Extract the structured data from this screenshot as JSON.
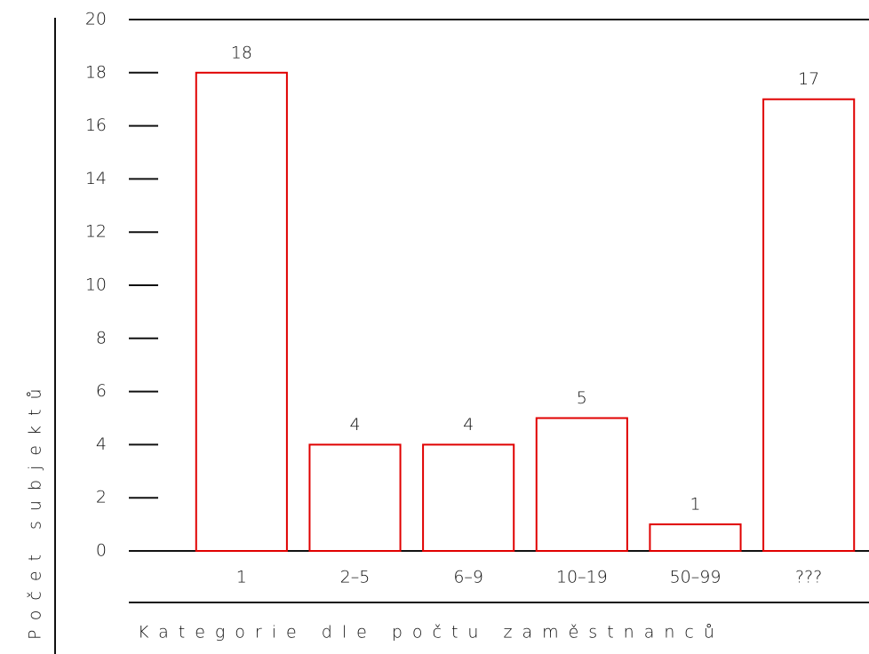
{
  "chart_data": {
    "type": "bar",
    "xlabel": "Kategorie dle počtu zaměstnanců",
    "ylabel": "Počet subjektů",
    "categories": [
      "1",
      "2–5",
      "6–9",
      "10–19",
      "50–99",
      "???"
    ],
    "values": [
      18,
      4,
      4,
      5,
      1,
      17
    ],
    "color": "#e00000",
    "ylim": [
      0,
      20
    ],
    "yticks": [
      0,
      2,
      4,
      6,
      8,
      10,
      12,
      14,
      16,
      18,
      20
    ]
  }
}
